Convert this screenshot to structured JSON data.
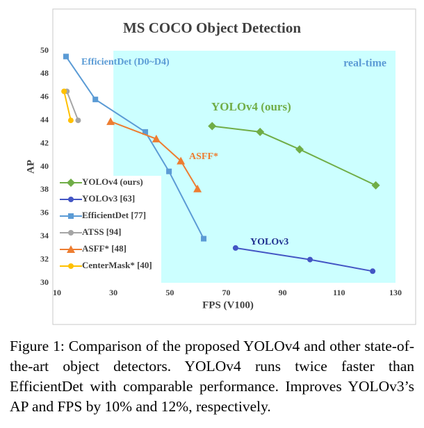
{
  "chart_data": {
    "type": "line",
    "title": "MS COCO Object Detection",
    "x_label": "FPS (V100)",
    "y_label": "AP",
    "xlim": [
      10,
      130
    ],
    "xticks": [
      10,
      30,
      50,
      70,
      90,
      110,
      130
    ],
    "ylim": [
      30,
      50
    ],
    "yticks": [
      30,
      32,
      34,
      36,
      38,
      40,
      42,
      44,
      46,
      48,
      50
    ],
    "shade_from": 30,
    "shade_color": "#ccffff",
    "legend": "lower left",
    "series": [
      {
        "name": "YOLOv4 (ours)",
        "color": "#70ad47",
        "marker": "diamond",
        "x": [
          65,
          82,
          96,
          123
        ],
        "values": [
          43.5,
          43.0,
          41.5,
          38.4
        ]
      },
      {
        "name": "YOLOv3 [63]",
        "color": "#4355c4",
        "marker": "circle",
        "x": [
          73.3,
          99.7,
          121.9
        ],
        "values": [
          33.0,
          32.0,
          31.0
        ]
      },
      {
        "name": "EfficientDet [77]",
        "color": "#5b9bd5",
        "marker": "square",
        "x": [
          13.2,
          23.6,
          41.3,
          49.7,
          62.0
        ],
        "values": [
          49.5,
          45.8,
          43.0,
          39.6,
          33.8
        ]
      },
      {
        "name": "ATSS [94]",
        "color": "#a5a5a5",
        "marker": "circle",
        "x": [
          13.5,
          17.5
        ],
        "values": [
          46.5,
          44.0
        ]
      },
      {
        "name": "ASFF* [48]",
        "color": "#ed7d31",
        "marker": "triangle",
        "x": [
          29.0,
          45.2,
          53.9,
          59.8
        ],
        "values": [
          43.9,
          42.4,
          40.5,
          38.1
        ]
      },
      {
        "name": "CenterMask* [40]",
        "color": "#ffc000",
        "marker": "circle",
        "x": [
          12.5,
          14.9
        ],
        "values": [
          46.5,
          44.0
        ]
      }
    ],
    "annotations": [
      {
        "text": "EfficientDet (D0~D4)",
        "color": "#5b9bd5"
      },
      {
        "text": "real-time",
        "color": "#5b9bd5"
      },
      {
        "text": "YOLOv4 (ours)",
        "color": "#70ad47"
      },
      {
        "text": "ASFF*",
        "color": "#ed7d31"
      },
      {
        "text": "YOLOv3",
        "color": "#1f2f8f"
      }
    ]
  },
  "caption": "Figure 1: Comparison of the proposed YOLOv4 and other state-of-the-art object detectors. YOLOv4 runs twice faster than EfficientDet with comparable performance. Improves YOLOv3’s AP and FPS by 10% and 12%, respectively."
}
